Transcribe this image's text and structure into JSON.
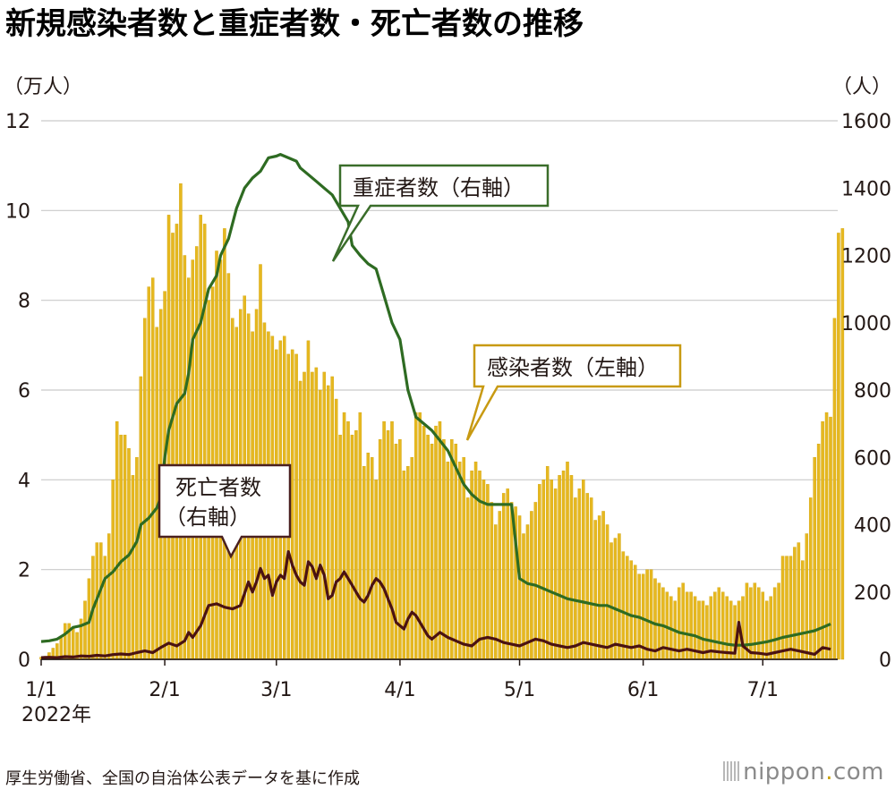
{
  "title": "新規感染者数と重症者数・死亡者数の推移",
  "source": "厚生労働省、全国の自治体公表データを基に作成",
  "logo": {
    "prefix": "nippon",
    "dot": ".",
    "suffix": "com"
  },
  "colors": {
    "bars": "#e6b820",
    "bar_stroke": "#d2a40c",
    "severe": "#2e6b22",
    "deaths": "#4a1212",
    "grid": "#c9c9c9",
    "callout_severe_border": "#3a6d2a",
    "callout_cases_border": "#c89a12",
    "callout_deaths_border": "#4a2020"
  },
  "chart_data": {
    "type": "bar+line",
    "left_axis": {
      "unit": "（万人）",
      "ticks": [
        "0",
        "2",
        "4",
        "6",
        "8",
        "10",
        "12"
      ],
      "ylim": [
        0,
        12
      ]
    },
    "right_axis": {
      "unit": "（人）",
      "ticks": [
        "0",
        "200",
        "400",
        "600",
        "800",
        "1000",
        "1200",
        "1400",
        "1600"
      ],
      "ylim": [
        0,
        1600
      ]
    },
    "x_axis": {
      "ticks": [
        "1/1",
        "2/1",
        "3/1",
        "4/1",
        "5/1",
        "6/1",
        "7/1"
      ],
      "tick_days": [
        0,
        31,
        59,
        90,
        120,
        151,
        181
      ],
      "year_label": "2022年",
      "day_range": [
        0,
        198
      ]
    },
    "series": [
      {
        "name": "感染者数（左軸）",
        "type": "bar",
        "axis": "left",
        "unit": "万人",
        "values": [
          0.05,
          0.07,
          0.15,
          0.25,
          0.35,
          0.5,
          0.8,
          0.8,
          0.7,
          0.6,
          0.9,
          1.3,
          1.8,
          2.3,
          2.6,
          2.6,
          2.3,
          2.8,
          4.0,
          5.3,
          5.0,
          5.0,
          4.7,
          4.1,
          4.5,
          6.3,
          7.6,
          8.3,
          8.5,
          7.4,
          7.8,
          8.2,
          9.9,
          9.5,
          9.7,
          10.6,
          9.0,
          8.5,
          8.9,
          9.2,
          9.9,
          9.7,
          8.0,
          8.3,
          9.1,
          8.9,
          9.6,
          8.6,
          7.6,
          7.4,
          7.8,
          8.1,
          7.7,
          7.3,
          7.8,
          8.8,
          7.5,
          7.3,
          7.2,
          6.9,
          7.1,
          7.2,
          6.8,
          6.9,
          6.8,
          6.2,
          6.4,
          7.1,
          6.4,
          6.5,
          6.0,
          6.4,
          6.1,
          6.3,
          5.8,
          5.0,
          5.5,
          5.3,
          5.0,
          5.1,
          5.5,
          4.3,
          4.6,
          4.5,
          4.0,
          4.9,
          5.3,
          5.1,
          5.3,
          4.8,
          4.9,
          4.2,
          4.3,
          4.5,
          5.5,
          5.5,
          5.2,
          5.0,
          4.8,
          5.2,
          5.3,
          4.9,
          4.4,
          4.9,
          4.8,
          4.4,
          4.5,
          3.6,
          4.2,
          4.4,
          4.2,
          4.0,
          3.9,
          3.5,
          3.0,
          3.3,
          3.7,
          3.8,
          3.5,
          3.4,
          3.2,
          2.8,
          3.0,
          3.3,
          3.5,
          3.9,
          4.0,
          4.3,
          4.0,
          3.8,
          4.1,
          4.2,
          4.4,
          4.1,
          3.6,
          3.8,
          4.0,
          3.7,
          3.6,
          3.1,
          3.2,
          3.3,
          3.0,
          2.6,
          2.7,
          2.8,
          2.4,
          2.3,
          2.2,
          2.1,
          1.9,
          1.9,
          2.0,
          2.0,
          1.8,
          1.7,
          1.6,
          1.5,
          1.4,
          1.3,
          1.6,
          1.7,
          1.5,
          1.5,
          1.4,
          1.3,
          1.3,
          1.2,
          1.4,
          1.5,
          1.6,
          1.5,
          1.4,
          1.3,
          1.2,
          1.3,
          1.4,
          1.7,
          1.6,
          1.7,
          1.6,
          1.5,
          1.3,
          1.4,
          1.6,
          1.7,
          2.3,
          2.3,
          2.3,
          2.5,
          2.6,
          2.2,
          2.8,
          3.6,
          4.5,
          4.8,
          5.3,
          5.5,
          5.4,
          7.6,
          9.5,
          9.6
        ]
      },
      {
        "name": "重症者数（右軸）",
        "type": "line",
        "axis": "right",
        "unit": "人",
        "points": [
          [
            0,
            53
          ],
          [
            2,
            55
          ],
          [
            4,
            60
          ],
          [
            6,
            75
          ],
          [
            8,
            95
          ],
          [
            10,
            100
          ],
          [
            12,
            110
          ],
          [
            13,
            150
          ],
          [
            14,
            180
          ],
          [
            16,
            240
          ],
          [
            18,
            260
          ],
          [
            20,
            290
          ],
          [
            22,
            310
          ],
          [
            24,
            350
          ],
          [
            25,
            400
          ],
          [
            27,
            420
          ],
          [
            29,
            450
          ],
          [
            30,
            480
          ],
          [
            31,
            600
          ],
          [
            32,
            680
          ],
          [
            34,
            760
          ],
          [
            36,
            790
          ],
          [
            37,
            850
          ],
          [
            38,
            950
          ],
          [
            40,
            1000
          ],
          [
            42,
            1100
          ],
          [
            44,
            1140
          ],
          [
            45,
            1200
          ],
          [
            47,
            1250
          ],
          [
            49,
            1340
          ],
          [
            51,
            1400
          ],
          [
            53,
            1430
          ],
          [
            55,
            1450
          ],
          [
            57,
            1490
          ],
          [
            59,
            1495
          ],
          [
            60,
            1500
          ],
          [
            62,
            1490
          ],
          [
            64,
            1480
          ],
          [
            65,
            1460
          ],
          [
            67,
            1440
          ],
          [
            69,
            1420
          ],
          [
            71,
            1400
          ],
          [
            73,
            1380
          ],
          [
            75,
            1340
          ],
          [
            77,
            1300
          ],
          [
            78,
            1230
          ],
          [
            80,
            1200
          ],
          [
            82,
            1175
          ],
          [
            84,
            1160
          ],
          [
            86,
            1080
          ],
          [
            88,
            1000
          ],
          [
            90,
            950
          ],
          [
            92,
            800
          ],
          [
            94,
            720
          ],
          [
            96,
            700
          ],
          [
            98,
            680
          ],
          [
            100,
            650
          ],
          [
            102,
            620
          ],
          [
            104,
            570
          ],
          [
            106,
            520
          ],
          [
            108,
            490
          ],
          [
            110,
            470
          ],
          [
            112,
            460
          ],
          [
            114,
            460
          ],
          [
            116,
            460
          ],
          [
            118,
            460
          ],
          [
            120,
            240
          ],
          [
            122,
            225
          ],
          [
            124,
            220
          ],
          [
            126,
            210
          ],
          [
            128,
            200
          ],
          [
            130,
            190
          ],
          [
            132,
            180
          ],
          [
            134,
            175
          ],
          [
            136,
            170
          ],
          [
            138,
            165
          ],
          [
            140,
            160
          ],
          [
            142,
            160
          ],
          [
            144,
            150
          ],
          [
            146,
            140
          ],
          [
            148,
            130
          ],
          [
            150,
            125
          ],
          [
            152,
            115
          ],
          [
            154,
            105
          ],
          [
            156,
            100
          ],
          [
            158,
            90
          ],
          [
            160,
            80
          ],
          [
            162,
            75
          ],
          [
            164,
            70
          ],
          [
            166,
            60
          ],
          [
            168,
            55
          ],
          [
            170,
            50
          ],
          [
            172,
            45
          ],
          [
            174,
            42
          ],
          [
            176,
            42
          ],
          [
            178,
            44
          ],
          [
            180,
            48
          ],
          [
            182,
            52
          ],
          [
            184,
            58
          ],
          [
            186,
            65
          ],
          [
            188,
            70
          ],
          [
            190,
            75
          ],
          [
            192,
            80
          ],
          [
            194,
            85
          ],
          [
            196,
            95
          ],
          [
            198,
            105
          ]
        ]
      },
      {
        "name": "死亡者数（右軸）",
        "type": "line",
        "axis": "right",
        "unit": "人",
        "points": [
          [
            0,
            5
          ],
          [
            2,
            6
          ],
          [
            4,
            5
          ],
          [
            6,
            8
          ],
          [
            8,
            7
          ],
          [
            10,
            10
          ],
          [
            12,
            9
          ],
          [
            14,
            12
          ],
          [
            16,
            10
          ],
          [
            18,
            14
          ],
          [
            20,
            16
          ],
          [
            22,
            14
          ],
          [
            24,
            20
          ],
          [
            26,
            25
          ],
          [
            28,
            20
          ],
          [
            30,
            35
          ],
          [
            32,
            48
          ],
          [
            34,
            40
          ],
          [
            36,
            55
          ],
          [
            37,
            80
          ],
          [
            38,
            65
          ],
          [
            40,
            100
          ],
          [
            42,
            160
          ],
          [
            44,
            165
          ],
          [
            46,
            155
          ],
          [
            48,
            150
          ],
          [
            50,
            160
          ],
          [
            52,
            230
          ],
          [
            53,
            200
          ],
          [
            54,
            230
          ],
          [
            55,
            270
          ],
          [
            56,
            240
          ],
          [
            57,
            250
          ],
          [
            58,
            190
          ],
          [
            59,
            230
          ],
          [
            60,
            250
          ],
          [
            61,
            240
          ],
          [
            62,
            320
          ],
          [
            63,
            280
          ],
          [
            64,
            250
          ],
          [
            65,
            230
          ],
          [
            66,
            220
          ],
          [
            67,
            290
          ],
          [
            68,
            275
          ],
          [
            69,
            240
          ],
          [
            70,
            280
          ],
          [
            71,
            250
          ],
          [
            72,
            180
          ],
          [
            73,
            190
          ],
          [
            74,
            230
          ],
          [
            75,
            240
          ],
          [
            76,
            260
          ],
          [
            77,
            240
          ],
          [
            78,
            220
          ],
          [
            79,
            200
          ],
          [
            80,
            180
          ],
          [
            81,
            170
          ],
          [
            82,
            190
          ],
          [
            83,
            220
          ],
          [
            84,
            240
          ],
          [
            85,
            230
          ],
          [
            86,
            210
          ],
          [
            87,
            180
          ],
          [
            88,
            150
          ],
          [
            89,
            110
          ],
          [
            90,
            100
          ],
          [
            91,
            90
          ],
          [
            92,
            120
          ],
          [
            93,
            140
          ],
          [
            94,
            130
          ],
          [
            95,
            110
          ],
          [
            96,
            90
          ],
          [
            97,
            70
          ],
          [
            98,
            60
          ],
          [
            99,
            70
          ],
          [
            100,
            80
          ],
          [
            102,
            65
          ],
          [
            104,
            55
          ],
          [
            106,
            45
          ],
          [
            108,
            40
          ],
          [
            110,
            60
          ],
          [
            112,
            65
          ],
          [
            114,
            60
          ],
          [
            116,
            50
          ],
          [
            118,
            45
          ],
          [
            120,
            40
          ],
          [
            122,
            50
          ],
          [
            124,
            60
          ],
          [
            126,
            55
          ],
          [
            128,
            45
          ],
          [
            130,
            40
          ],
          [
            132,
            35
          ],
          [
            134,
            40
          ],
          [
            136,
            50
          ],
          [
            138,
            45
          ],
          [
            140,
            40
          ],
          [
            142,
            35
          ],
          [
            144,
            45
          ],
          [
            146,
            40
          ],
          [
            148,
            35
          ],
          [
            150,
            40
          ],
          [
            152,
            30
          ],
          [
            154,
            25
          ],
          [
            156,
            35
          ],
          [
            158,
            30
          ],
          [
            160,
            25
          ],
          [
            162,
            30
          ],
          [
            164,
            25
          ],
          [
            166,
            20
          ],
          [
            168,
            25
          ],
          [
            170,
            22
          ],
          [
            172,
            20
          ],
          [
            174,
            18
          ],
          [
            175,
            110
          ],
          [
            176,
            40
          ],
          [
            178,
            20
          ],
          [
            180,
            18
          ],
          [
            182,
            15
          ],
          [
            184,
            20
          ],
          [
            186,
            25
          ],
          [
            188,
            30
          ],
          [
            190,
            25
          ],
          [
            192,
            20
          ],
          [
            194,
            15
          ],
          [
            196,
            35
          ],
          [
            198,
            30
          ]
        ]
      }
    ],
    "callouts": {
      "severe": "重症者数（右軸）",
      "cases": "感染者数（左軸）",
      "deaths_line1": "死亡者数",
      "deaths_line2": "（右軸）"
    }
  }
}
